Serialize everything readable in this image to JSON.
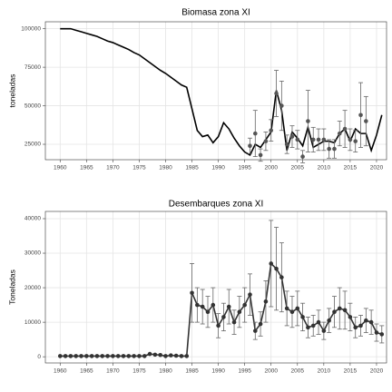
{
  "chart_data": [
    {
      "type": "line",
      "title": "Biomasa zona XI",
      "y_label": "toneladas",
      "xlim": [
        1957.2,
        2021.9
      ],
      "ylim": [
        15000,
        104500
      ],
      "xticks": [
        1960,
        1965,
        1970,
        1975,
        1980,
        1985,
        1990,
        1995,
        2000,
        2005,
        2010,
        2015,
        2020
      ],
      "yticks": [
        25000,
        50000,
        75000,
        100000
      ],
      "grid": true,
      "series": [
        {
          "color": "#000000",
          "markers": false,
          "x": [
            1960,
            1961,
            1962,
            1963,
            1964,
            1965,
            1966,
            1967,
            1968,
            1969,
            1970,
            1971,
            1972,
            1973,
            1974,
            1975,
            1976,
            1977,
            1978,
            1979,
            1980,
            1981,
            1982,
            1983,
            1984,
            1985,
            1986,
            1987,
            1988,
            1989,
            1990,
            1991,
            1992,
            1993,
            1994,
            1995,
            1996,
            1997,
            1998,
            1999,
            2000,
            2001,
            2002,
            2003,
            2004,
            2005,
            2006,
            2007,
            2008,
            2009,
            2010,
            2011,
            2012,
            2013,
            2014,
            2015,
            2016,
            2017,
            2018,
            2019,
            2020,
            2021
          ],
          "values": [
            100000,
            100000,
            100000,
            99000,
            98000,
            97000,
            96000,
            95000,
            93500,
            92000,
            91000,
            89500,
            88000,
            86500,
            84500,
            83000,
            80500,
            78000,
            75500,
            73000,
            71000,
            68500,
            66000,
            63500,
            62000,
            48000,
            34000,
            30000,
            31000,
            26000,
            30000,
            39000,
            35000,
            29000,
            24000,
            20000,
            18000,
            25000,
            23000,
            28000,
            33000,
            60000,
            47000,
            21000,
            33000,
            29000,
            24000,
            36000,
            23000,
            25000,
            27000,
            27000,
            26000,
            32000,
            35000,
            27000,
            35000,
            32000,
            32000,
            21000,
            31000,
            44000
          ]
        },
        {
          "color": "#555555",
          "markers": true,
          "line": false,
          "x": [
            1996,
            1997,
            1998,
            1999,
            2000,
            2001,
            2002,
            2003,
            2004,
            2005,
            2006,
            2007,
            2008,
            2009,
            2010,
            2011,
            2012,
            2013,
            2014,
            2015,
            2016,
            2017,
            2018
          ],
          "values": [
            24000,
            32000,
            18000,
            27000,
            34000,
            58000,
            50000,
            25000,
            30000,
            28000,
            17000,
            40000,
            28000,
            28000,
            28000,
            22000,
            22000,
            32000,
            35000,
            28000,
            27000,
            44000,
            40000
          ],
          "errors": [
            5000,
            15000,
            4000,
            6000,
            7000,
            15000,
            16000,
            6000,
            7000,
            6000,
            4000,
            20000,
            8000,
            7000,
            7000,
            6000,
            6000,
            8000,
            12000,
            7000,
            7000,
            21000,
            16000
          ]
        }
      ]
    },
    {
      "type": "line",
      "title": "Desembarques zona XI",
      "y_label": "Toneladas",
      "xlim": [
        1957.2,
        2021.9
      ],
      "ylim": [
        -1800,
        42100
      ],
      "xticks": [
        1960,
        1965,
        1970,
        1975,
        1980,
        1985,
        1990,
        1995,
        2000,
        2005,
        2010,
        2015,
        2020
      ],
      "yticks": [
        0,
        10000,
        20000,
        30000,
        40000
      ],
      "grid": true,
      "series": [
        {
          "color": "#333333",
          "markers": true,
          "x": [
            1960,
            1961,
            1962,
            1963,
            1964,
            1965,
            1966,
            1967,
            1968,
            1969,
            1970,
            1971,
            1972,
            1973,
            1974,
            1975,
            1976,
            1977,
            1978,
            1979,
            1980,
            1981,
            1982,
            1983,
            1984,
            1985,
            1986,
            1987,
            1988,
            1989,
            1990,
            1991,
            1992,
            1993,
            1994,
            1995,
            1996,
            1997,
            1998,
            1999,
            2000,
            2001,
            2002,
            2003,
            2004,
            2005,
            2006,
            2007,
            2008,
            2009,
            2010,
            2011,
            2012,
            2013,
            2014,
            2015,
            2016,
            2017,
            2018,
            2019,
            2020,
            2021
          ],
          "values": [
            200,
            200,
            200,
            200,
            200,
            200,
            200,
            200,
            200,
            200,
            200,
            200,
            200,
            200,
            200,
            200,
            200,
            800,
            600,
            500,
            200,
            400,
            300,
            200,
            200,
            18500,
            15000,
            14500,
            13000,
            15000,
            9000,
            11500,
            14500,
            10000,
            13000,
            15000,
            18000,
            7500,
            9500,
            16000,
            27000,
            25500,
            23000,
            14000,
            13000,
            14000,
            11500,
            8500,
            9000,
            10000,
            7500,
            10500,
            13000,
            14000,
            13500,
            11500,
            8500,
            9000,
            10500,
            10000,
            7000,
            6500
          ],
          "errors": [
            null,
            null,
            null,
            null,
            null,
            null,
            null,
            null,
            null,
            null,
            null,
            null,
            null,
            null,
            null,
            null,
            null,
            null,
            null,
            null,
            null,
            null,
            null,
            null,
            null,
            8500,
            5000,
            5000,
            4500,
            5000,
            3500,
            4000,
            5000,
            3500,
            4500,
            5000,
            6000,
            2500,
            3500,
            6000,
            12500,
            12000,
            10000,
            5000,
            4500,
            5000,
            4000,
            3000,
            3000,
            3500,
            2500,
            3500,
            4500,
            6000,
            5500,
            4000,
            3000,
            3000,
            3500,
            3500,
            2500,
            2500
          ]
        }
      ]
    }
  ]
}
